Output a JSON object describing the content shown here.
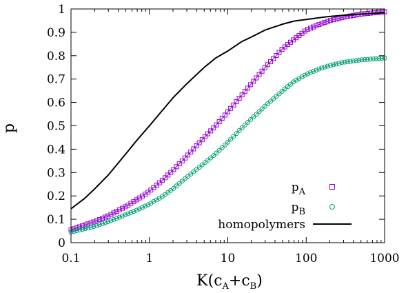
{
  "chart_data": {
    "type": "line",
    "title": "",
    "xlabel": {
      "main": "K(c",
      "sub1": "A",
      "mid": "+c",
      "sub2": "B",
      "end": ")"
    },
    "ylabel": "p",
    "xscale": "log",
    "xlim": [
      0.1,
      1000
    ],
    "ylim": [
      0,
      1
    ],
    "xticks": [
      {
        "value": 0.1,
        "label": "0.1"
      },
      {
        "value": 1,
        "label": "1"
      },
      {
        "value": 10,
        "label": "10"
      },
      {
        "value": 100,
        "label": "100"
      },
      {
        "value": 1000,
        "label": "1000"
      }
    ],
    "yticks": [
      {
        "value": 0,
        "label": "0"
      },
      {
        "value": 0.1,
        "label": "0.1"
      },
      {
        "value": 0.2,
        "label": "0.2"
      },
      {
        "value": 0.3,
        "label": "0.3"
      },
      {
        "value": 0.4,
        "label": "0.4"
      },
      {
        "value": 0.5,
        "label": "0.5"
      },
      {
        "value": 0.6,
        "label": "0.6"
      },
      {
        "value": 0.7,
        "label": "0.7"
      },
      {
        "value": 0.8,
        "label": "0.8"
      },
      {
        "value": 0.9,
        "label": "0.9"
      },
      {
        "value": 1,
        "label": "1"
      }
    ],
    "grid": false,
    "legend_position": "bottom-right",
    "series": [
      {
        "id": "pA",
        "name": "p",
        "name_sub": "A",
        "marker": "square",
        "color": "#9400d3",
        "x": [
          0.1,
          0.2,
          0.3,
          0.5,
          0.7,
          1,
          1.5,
          2,
          3,
          5,
          7,
          10,
          15,
          20,
          30,
          50,
          70,
          100,
          150,
          200,
          300,
          500,
          700,
          1000
        ],
        "y": [
          0.055,
          0.09,
          0.115,
          0.155,
          0.185,
          0.22,
          0.27,
          0.31,
          0.37,
          0.45,
          0.5,
          0.56,
          0.63,
          0.68,
          0.75,
          0.83,
          0.87,
          0.91,
          0.935,
          0.95,
          0.965,
          0.978,
          0.983,
          0.988
        ]
      },
      {
        "id": "pB",
        "name": "p",
        "name_sub": "B",
        "marker": "circle",
        "color": "#009e73",
        "x": [
          0.1,
          0.2,
          0.3,
          0.5,
          0.7,
          1,
          1.5,
          2,
          3,
          5,
          7,
          10,
          15,
          20,
          30,
          50,
          70,
          100,
          150,
          200,
          300,
          500,
          700,
          1000
        ],
        "y": [
          0.045,
          0.07,
          0.09,
          0.12,
          0.14,
          0.165,
          0.2,
          0.23,
          0.28,
          0.34,
          0.38,
          0.43,
          0.49,
          0.53,
          0.585,
          0.65,
          0.69,
          0.72,
          0.745,
          0.758,
          0.772,
          0.782,
          0.786,
          0.79
        ]
      },
      {
        "id": "homo",
        "name": "homopolymers",
        "marker": "none",
        "color": "#000000",
        "x": [
          0.1,
          0.15,
          0.2,
          0.3,
          0.5,
          0.7,
          1,
          1.5,
          2,
          3,
          5,
          7,
          10,
          15,
          20,
          30,
          50,
          70,
          100,
          150,
          200,
          300,
          500,
          700,
          1000
        ],
        "y": [
          0.145,
          0.19,
          0.23,
          0.29,
          0.38,
          0.44,
          0.5,
          0.57,
          0.62,
          0.68,
          0.75,
          0.79,
          0.82,
          0.86,
          0.88,
          0.91,
          0.935,
          0.948,
          0.955,
          0.963,
          0.968,
          0.973,
          0.978,
          0.981,
          0.984
        ]
      }
    ]
  }
}
